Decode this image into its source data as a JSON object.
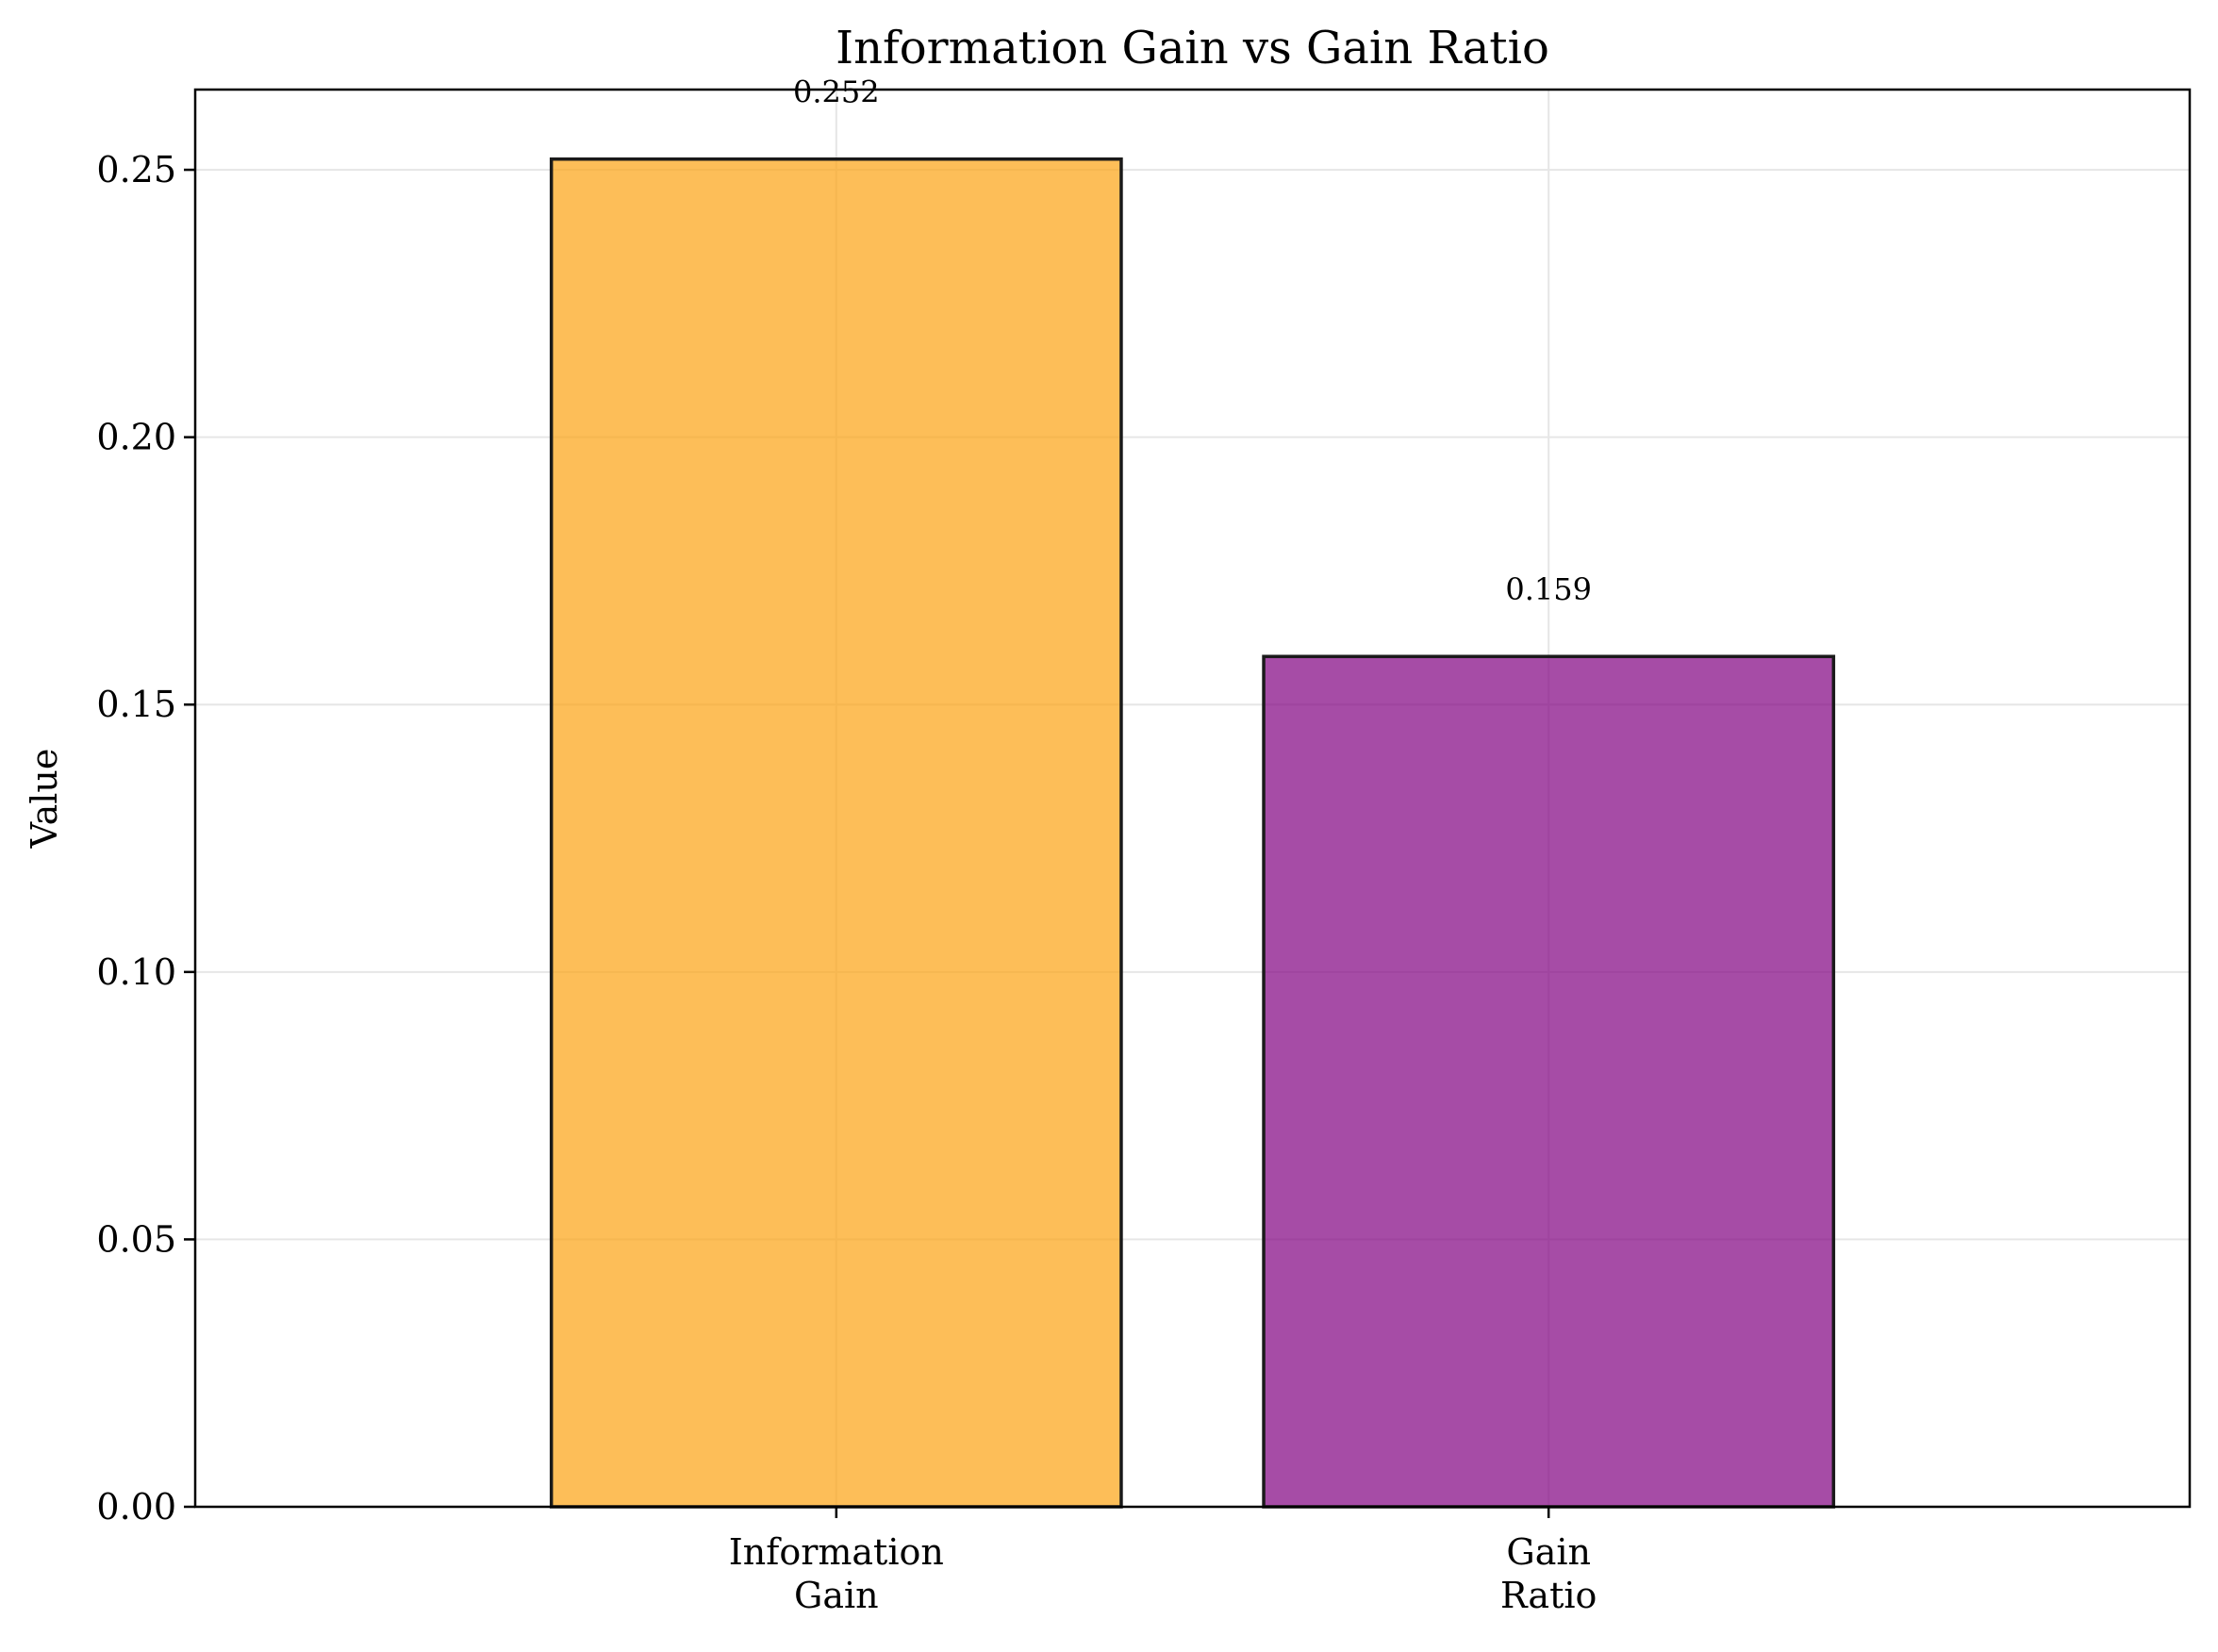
{
  "chart_data": {
    "type": "bar",
    "title": "Information Gain vs Gain Ratio",
    "xlabel": "",
    "ylabel": "Value",
    "categories": [
      [
        "Information",
        "Gain"
      ],
      [
        "Gain",
        "Ratio"
      ]
    ],
    "values": [
      0.252,
      0.159
    ],
    "data_labels": [
      "0.252",
      "0.159"
    ],
    "colors": [
      "#fca311",
      "#800080"
    ],
    "ylim": [
      0,
      0.265
    ],
    "yticks": [
      0.0,
      0.05,
      0.1,
      0.15,
      0.2,
      0.25
    ],
    "ytick_labels": [
      "0.00",
      "0.05",
      "0.10",
      "0.15",
      "0.20",
      "0.25"
    ],
    "grid": true,
    "legend": "none"
  }
}
